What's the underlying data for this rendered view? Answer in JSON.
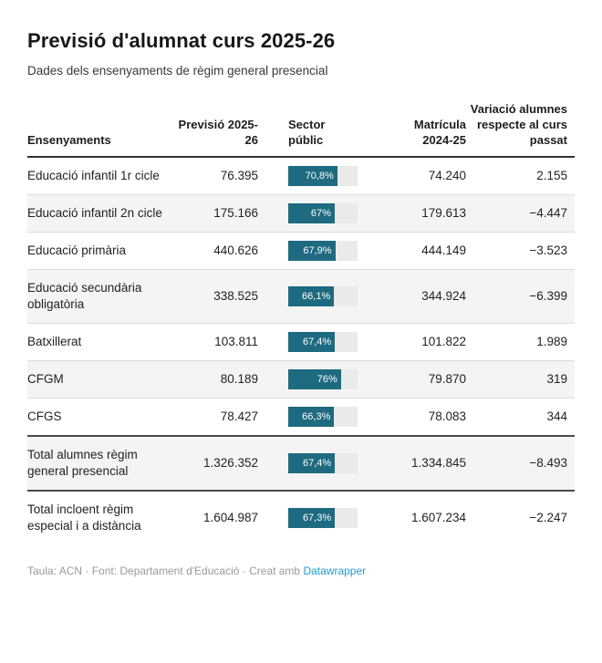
{
  "header": {
    "title": "Previsió d'alumnat curs 2025-26",
    "subtitle": "Dades dels ensenyaments de règim general presencial"
  },
  "chart_data": {
    "type": "table",
    "title": "Previsió d'alumnat curs 2025-26",
    "subtitle": "Dades dels ensenyaments de règim general presencial",
    "columns": [
      "Ensenyaments",
      "Previsió 2025-26",
      "Sector públic",
      "Matrícula 2024-25",
      "Variació alumnes respecte al curs passat"
    ],
    "bar_column": {
      "name": "Sector públic",
      "min": 0,
      "max": 100,
      "unit": "%"
    },
    "rows": [
      {
        "ensenyament": "Educació infantil 1r cicle",
        "previsio_2025_26": "76.395",
        "sector_public_pct": 70.8,
        "sector_public_label": "70,8%",
        "matricula_2024_25": "74.240",
        "variacio": "2.155",
        "total": false
      },
      {
        "ensenyament": "Educació infantil 2n cicle",
        "previsio_2025_26": "175.166",
        "sector_public_pct": 67,
        "sector_public_label": "67%",
        "matricula_2024_25": "179.613",
        "variacio": "−4.447",
        "total": false
      },
      {
        "ensenyament": "Educació primària",
        "previsio_2025_26": "440.626",
        "sector_public_pct": 67.9,
        "sector_public_label": "67,9%",
        "matricula_2024_25": "444.149",
        "variacio": "−3.523",
        "total": false
      },
      {
        "ensenyament": "Educació secundària obligatòria",
        "previsio_2025_26": "338.525",
        "sector_public_pct": 66.1,
        "sector_public_label": "66,1%",
        "matricula_2024_25": "344.924",
        "variacio": "−6.399",
        "total": false
      },
      {
        "ensenyament": "Batxillerat",
        "previsio_2025_26": "103.811",
        "sector_public_pct": 67.4,
        "sector_public_label": "67,4%",
        "matricula_2024_25": "101.822",
        "variacio": "1.989",
        "total": false
      },
      {
        "ensenyament": "CFGM",
        "previsio_2025_26": "80.189",
        "sector_public_pct": 76,
        "sector_public_label": "76%",
        "matricula_2024_25": "79.870",
        "variacio": "319",
        "total": false
      },
      {
        "ensenyament": "CFGS",
        "previsio_2025_26": "78.427",
        "sector_public_pct": 66.3,
        "sector_public_label": "66,3%",
        "matricula_2024_25": "78.083",
        "variacio": "344",
        "total": false
      },
      {
        "ensenyament": "Total alumnes règim general presencial",
        "previsio_2025_26": "1.326.352",
        "sector_public_pct": 67.4,
        "sector_public_label": "67,4%",
        "matricula_2024_25": "1.334.845",
        "variacio": "−8.493",
        "total": true
      },
      {
        "ensenyament": "Total incloent règim especial i a distància",
        "previsio_2025_26": "1.604.987",
        "sector_public_pct": 67.3,
        "sector_public_label": "67,3%",
        "matricula_2024_25": "1.607.234",
        "variacio": "−2.247",
        "total": true
      }
    ]
  },
  "footer": {
    "attribution_prefix": "Taula: ACN · Font: Departament d'Educació · Creat amb ",
    "link_label": "Datawrapper"
  },
  "colors": {
    "bar_fill": "#1e6a80",
    "bar_track": "#eaeaea",
    "row_alt_bg": "#f4f4f4",
    "header_border": "#333333",
    "total_border": "#4a4a4a",
    "link_blue": "#1f9bd4",
    "footer_gray": "#9a9a9a"
  }
}
